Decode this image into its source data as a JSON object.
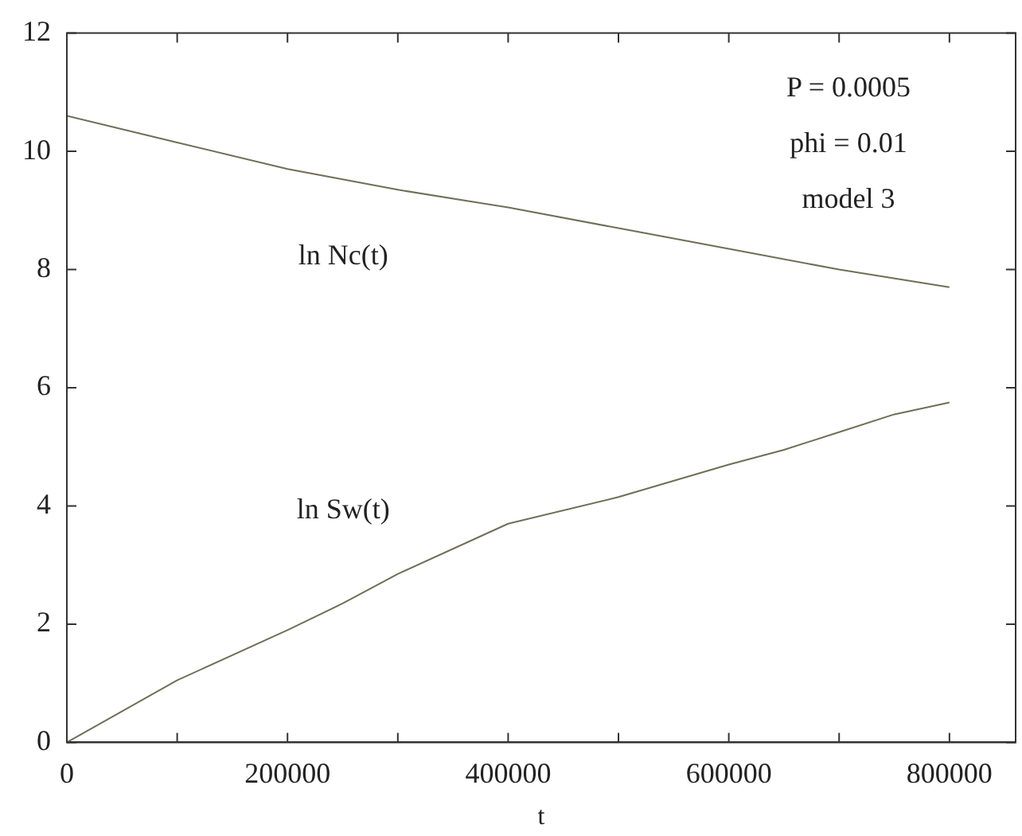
{
  "chart_data": {
    "type": "line",
    "xlabel": "t",
    "x": [
      0,
      100000,
      200000,
      250000,
      300000,
      400000,
      500000,
      600000,
      650000,
      700000,
      750000,
      800000
    ],
    "series": [
      {
        "name": "ln Nc(t)",
        "color": "#6f6f58",
        "x": [
          0,
          100000,
          200000,
          300000,
          400000,
          500000,
          600000,
          700000,
          800000
        ],
        "values": [
          10.6,
          10.15,
          9.7,
          9.35,
          9.05,
          8.7,
          8.35,
          8.0,
          7.7
        ]
      },
      {
        "name": "ln Sw(t)",
        "color": "#6f6f58",
        "values": [
          0,
          1.05,
          1.9,
          2.35,
          2.85,
          3.7,
          4.15,
          4.7,
          4.95,
          5.25,
          5.55,
          5.75
        ]
      }
    ],
    "xlim": [
      0,
      860000
    ],
    "xticks": [
      0,
      {
        "value": 100000,
        "label": null
      },
      200000,
      {
        "value": 300000,
        "label": null
      },
      400000,
      {
        "value": 500000,
        "label": null
      },
      600000,
      {
        "value": 700000,
        "label": null
      },
      800000
    ],
    "ylim": [
      0,
      12
    ],
    "yticks": [
      0,
      2,
      4,
      6,
      8,
      10,
      12
    ],
    "grid": false,
    "legend": false,
    "marker": "none",
    "line_style": "solid",
    "annotations": [
      "P = 0.0005",
      "phi = 0.01",
      "model 3"
    ]
  }
}
